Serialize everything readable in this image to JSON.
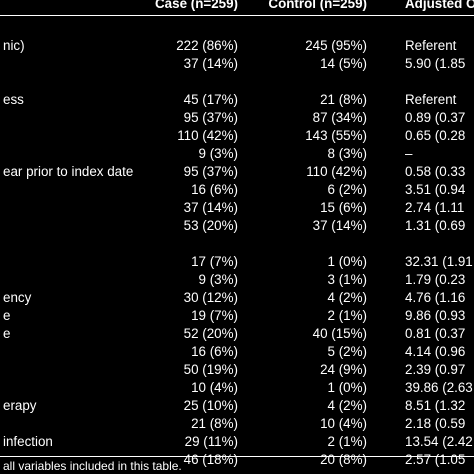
{
  "table": {
    "headers": {
      "case": "Case (n=259)",
      "control": "Control (n=259)",
      "adjusted": "Adjusted O"
    },
    "rows": [
      {
        "label": "nic)",
        "case": "222 (86%)",
        "control": "245 (95%)",
        "adjusted": "Referent"
      },
      {
        "label": "",
        "case": "37 (14%)",
        "control": "14 (5%)",
        "adjusted": "5.90 (1.85"
      },
      {
        "label": "",
        "case": "",
        "control": "",
        "adjusted": ""
      },
      {
        "label": "ess",
        "case": "45 (17%)",
        "control": "21 (8%)",
        "adjusted": "Referent"
      },
      {
        "label": "",
        "case": "95 (37%)",
        "control": "87 (34%)",
        "adjusted": "0.89 (0.37"
      },
      {
        "label": "",
        "case": "110 (42%)",
        "control": "143 (55%)",
        "adjusted": "0.65 (0.28"
      },
      {
        "label": "",
        "case": "9 (3%)",
        "control": "8 (3%)",
        "adjusted": "–"
      },
      {
        "label": "ear prior to index date",
        "case": "95 (37%)",
        "control": "110 (42%)",
        "adjusted": "0.58 (0.33"
      },
      {
        "label": "",
        "case": "16 (6%)",
        "control": "6 (2%)",
        "adjusted": "3.51 (0.94"
      },
      {
        "label": "",
        "case": "37 (14%)",
        "control": "15 (6%)",
        "adjusted": "2.74 (1.11"
      },
      {
        "label": "",
        "case": "53 (20%)",
        "control": "37 (14%)",
        "adjusted": "1.31 (0.69"
      },
      {
        "label": "",
        "case": "",
        "control": "",
        "adjusted": ""
      },
      {
        "label": "",
        "case": "17 (7%)",
        "control": "1 (0%)",
        "adjusted": "32.31 (1.91"
      },
      {
        "label": "",
        "case": "9 (3%)",
        "control": "3 (1%)",
        "adjusted": "1.79 (0.23"
      },
      {
        "label": "ency",
        "case": "30 (12%)",
        "control": "4 (2%)",
        "adjusted": "4.76 (1.16"
      },
      {
        "label": "e",
        "case": "19 (7%)",
        "control": "2 (1%)",
        "adjusted": "9.86 (0.93"
      },
      {
        "label": "e",
        "case": "52 (20%)",
        "control": "40 (15%)",
        "adjusted": "0.81 (0.37"
      },
      {
        "label": "",
        "case": "16 (6%)",
        "control": "5 (2%)",
        "adjusted": "4.14 (0.96"
      },
      {
        "label": "",
        "case": "50 (19%)",
        "control": "24 (9%)",
        "adjusted": "2.39 (0.97"
      },
      {
        "label": "",
        "case": "10 (4%)",
        "control": "1 (0%)",
        "adjusted": "39.86 (2.63"
      },
      {
        "label": "erapy",
        "case": "25 (10%)",
        "control": "4 (2%)",
        "adjusted": "8.51 (1.32"
      },
      {
        "label": "",
        "case": "21 (8%)",
        "control": "10 (4%)",
        "adjusted": "2.18 (0.59"
      },
      {
        "label": "infection",
        "case": "29 (11%)",
        "control": "2 (1%)",
        "adjusted": "13.54 (2.42"
      },
      {
        "label": "",
        "case": "46 (18%)",
        "control": "20 (8%)",
        "adjusted": "2.57 (1.05"
      }
    ],
    "footnote": "all variables included in this table."
  }
}
